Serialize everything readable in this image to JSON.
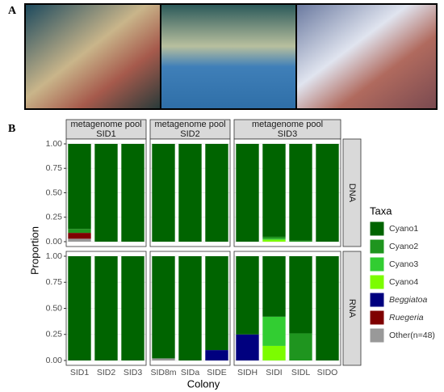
{
  "panel_a_label": "A",
  "chart_data": {
    "type": "bar",
    "stacked": true,
    "panel_label": "B",
    "y_label": "Proportion",
    "x_label": "Colony",
    "legend_title": "Taxa",
    "ylim": [
      0,
      1
    ],
    "yticks": [
      {
        "value": 0,
        "label": "0.00"
      },
      {
        "value": 0.25,
        "label": "0.25"
      },
      {
        "value": 0.5,
        "label": "0.50"
      },
      {
        "value": 0.75,
        "label": "0.75"
      },
      {
        "value": 1,
        "label": "1.00"
      }
    ],
    "facet_rows": [
      "DNA",
      "RNA"
    ],
    "series": [
      {
        "name": "Cyano1",
        "color": "#006400"
      },
      {
        "name": "Cyano2",
        "color": "#1f951f"
      },
      {
        "name": "Cyano3",
        "color": "#32cd32"
      },
      {
        "name": "Cyano4",
        "color": "#7cfc00"
      },
      {
        "name": "Beggiatoa",
        "color": "#00007f",
        "italic": true
      },
      {
        "name": "Ruegeria",
        "color": "#7f0000",
        "italic": true
      },
      {
        "name": "Other(n=48)",
        "color": "#999999"
      }
    ],
    "facets": [
      {
        "strip": [
          "metagenome pool",
          "SID1"
        ],
        "categories": [
          "SID1",
          "SID2",
          "SID3"
        ],
        "values": [
          [
            [
              0.87,
              1,
              1
            ],
            [
              0.04,
              0,
              0
            ],
            [
              0,
              0,
              0
            ],
            [
              0,
              0,
              0
            ],
            [
              0,
              0,
              0
            ],
            [
              0.06,
              0,
              0
            ],
            [
              0.03,
              0,
              0
            ]
          ],
          [
            [
              1,
              1,
              1
            ],
            [
              0,
              0,
              0
            ],
            [
              0,
              0,
              0
            ],
            [
              0,
              0,
              0
            ],
            [
              0,
              0,
              0
            ],
            [
              0,
              0,
              0
            ],
            [
              0,
              0,
              0
            ]
          ]
        ]
      },
      {
        "strip": [
          "metagenome pool",
          "SID2"
        ],
        "categories": [
          "SID8m",
          "SIDa",
          "SIDE"
        ],
        "values": [
          [
            [
              1,
              1,
              1
            ],
            [
              0,
              0,
              0
            ],
            [
              0,
              0,
              0
            ],
            [
              0,
              0,
              0
            ],
            [
              0,
              0,
              0
            ],
            [
              0,
              0,
              0
            ],
            [
              0,
              0,
              0
            ]
          ],
          [
            [
              0.98,
              1,
              0.9
            ],
            [
              0,
              0,
              0
            ],
            [
              0,
              0,
              0
            ],
            [
              0,
              0,
              0
            ],
            [
              0,
              0,
              0.1
            ],
            [
              0,
              0,
              0
            ],
            [
              0.02,
              0,
              0
            ]
          ]
        ]
      },
      {
        "strip": [
          "metagenome pool",
          "SID3"
        ],
        "categories": [
          "SIDH",
          "SIDI",
          "SIDL",
          "SIDO"
        ],
        "values": [
          [
            [
              1,
              0.95,
              0.99,
              1
            ],
            [
              0,
              0.02,
              0.01,
              0
            ],
            [
              0,
              0.01,
              0,
              0
            ],
            [
              0,
              0.02,
              0,
              0
            ],
            [
              0,
              0,
              0,
              0
            ],
            [
              0,
              0,
              0,
              0
            ],
            [
              0,
              0,
              0,
              0
            ]
          ],
          [
            [
              0.75,
              0.58,
              0.74,
              1
            ],
            [
              0,
              0,
              0.26,
              0
            ],
            [
              0,
              0.28,
              0,
              0
            ],
            [
              0,
              0.14,
              0,
              0
            ],
            [
              0.25,
              0,
              0,
              0
            ],
            [
              0,
              0,
              0,
              0
            ],
            [
              0,
              0,
              0,
              0
            ]
          ]
        ]
      }
    ]
  }
}
